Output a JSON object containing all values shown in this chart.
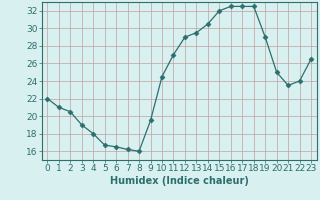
{
  "x": [
    0,
    1,
    2,
    3,
    4,
    5,
    6,
    7,
    8,
    9,
    10,
    11,
    12,
    13,
    14,
    15,
    16,
    17,
    18,
    19,
    20,
    21,
    22,
    23
  ],
  "y": [
    22,
    21,
    20.5,
    19,
    18,
    16.7,
    16.5,
    16.2,
    16,
    19.5,
    24.5,
    27,
    29,
    29.5,
    30.5,
    32,
    32.5,
    32.5,
    32.5,
    29,
    25,
    23.5,
    24,
    26.5
  ],
  "line_color": "#2d6e6e",
  "marker": "D",
  "marker_size": 2.5,
  "bg_color": "#d9f0f0",
  "grid_color": "#c0a0a0",
  "xlabel": "Humidex (Indice chaleur)",
  "ylim": [
    15,
    33
  ],
  "xlim": [
    -0.5,
    23.5
  ],
  "yticks": [
    16,
    18,
    20,
    22,
    24,
    26,
    28,
    30,
    32
  ],
  "xticks": [
    0,
    1,
    2,
    3,
    4,
    5,
    6,
    7,
    8,
    9,
    10,
    11,
    12,
    13,
    14,
    15,
    16,
    17,
    18,
    19,
    20,
    21,
    22,
    23
  ],
  "xlabel_fontsize": 7,
  "tick_fontsize": 6.5
}
